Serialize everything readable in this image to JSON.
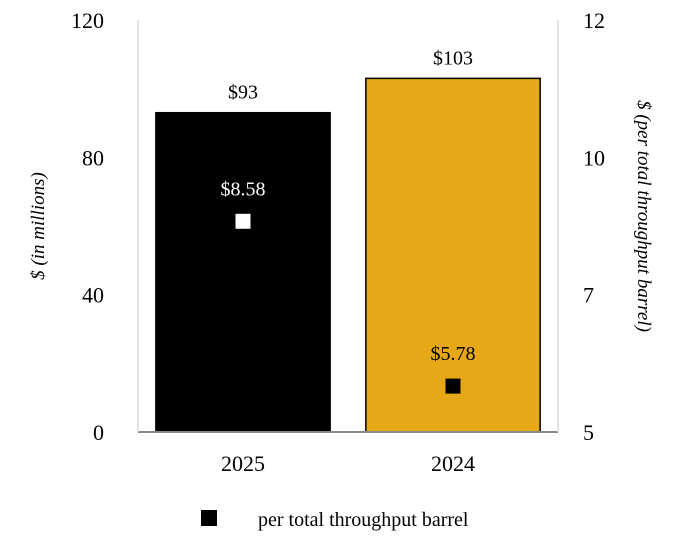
{
  "chart_data": {
    "type": "bar",
    "categories": [
      "2025",
      "2024"
    ],
    "series": [
      {
        "axis": "left",
        "values": [
          93,
          103
        ],
        "labels": [
          "$93",
          "$103"
        ],
        "colors": [
          "#000000",
          "#e6a817"
        ]
      },
      {
        "name": "per total throughput barrel",
        "axis": "right",
        "type": "scatter",
        "values": [
          8.58,
          5.78
        ],
        "labels": [
          "$8.58",
          "$5.78"
        ],
        "colors": [
          "#ffffff",
          "#000000"
        ]
      }
    ],
    "ylabel": "$ (in millions)",
    "y2label": "$ (per total throughput barrel)",
    "ylim": [
      0,
      120
    ],
    "y2lim": [
      5,
      12
    ],
    "yticks": [
      "0",
      "40",
      "80",
      "120"
    ],
    "y2ticks": [
      "5",
      "7",
      "10",
      "12"
    ],
    "legend": {
      "position": "bottom",
      "entries": [
        {
          "label": "per total throughput barrel",
          "marker": "square",
          "color": "#000000"
        }
      ]
    },
    "grid": false
  }
}
